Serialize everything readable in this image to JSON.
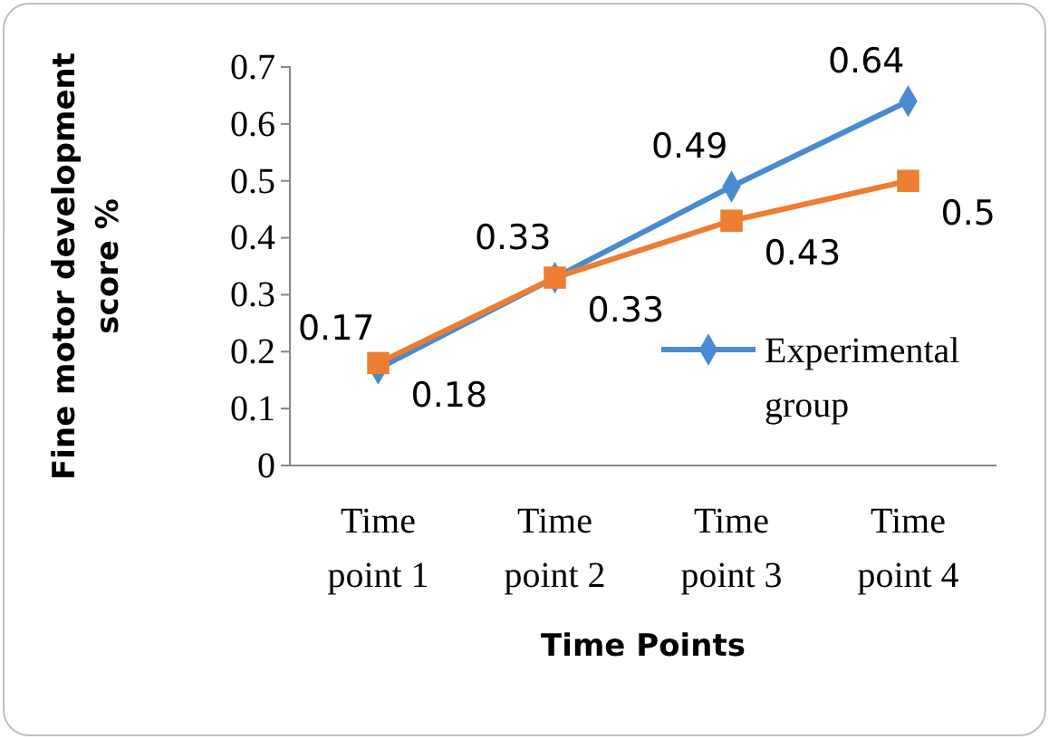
{
  "chart_data": {
    "type": "line",
    "xlabel": "Time Points",
    "ylabel": "Fine motor development score %",
    "categories": [
      "Time point 1",
      "Time point 2",
      "Time point 3",
      "Time point 4"
    ],
    "series": [
      {
        "name": "Experimental group",
        "color": "#4a8bd0",
        "values": [
          0.17,
          0.33,
          0.49,
          0.64
        ],
        "marker": "diamond"
      },
      {
        "color": "#ed7d31",
        "values": [
          0.18,
          0.33,
          0.43,
          0.5
        ],
        "marker": "square"
      }
    ],
    "ylim": [
      0,
      0.7
    ],
    "yticks": [
      0,
      0.1,
      0.2,
      0.3,
      0.4,
      0.5,
      0.6,
      0.7
    ],
    "data_labels": true,
    "legend": "right",
    "line_style": "solid",
    "grid": false
  }
}
